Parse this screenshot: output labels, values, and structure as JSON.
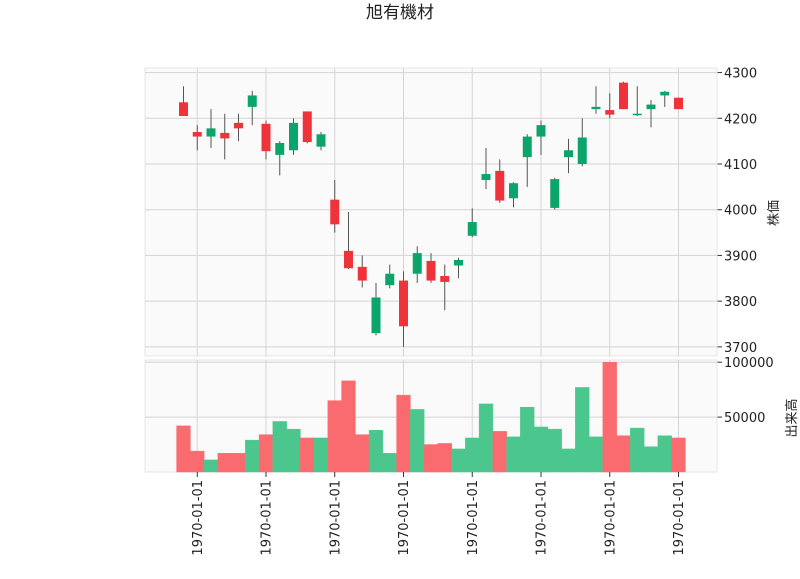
{
  "chart_data": {
    "type": "candlestick",
    "title": "旭有機材",
    "price_axis": {
      "label": "株価",
      "ylim": [
        3680,
        4310
      ],
      "ticks": [
        3700,
        3800,
        3900,
        4000,
        4100,
        4200,
        4300
      ],
      "tick_labels": [
        "3700",
        "3800",
        "3900",
        "4000",
        "4100",
        "4200",
        "4300"
      ]
    },
    "volume_axis": {
      "label": "出来高",
      "ylim": [
        0,
        102000
      ],
      "ticks": [
        50000,
        100000
      ],
      "tick_labels": [
        "50000",
        "100000"
      ]
    },
    "x_tick_labels": [
      "1970-01-01",
      "1970-01-01",
      "1970-01-01",
      "1970-01-01",
      "1970-01-01",
      "1970-01-01",
      "1970-01-01",
      "1970-01-01"
    ],
    "x_tick_indices": [
      1,
      6,
      11,
      16,
      21,
      26,
      31,
      36
    ],
    "grid": true,
    "colors": {
      "up": "#0aa56a",
      "down": "#f0333a",
      "up_volume": "#4bc78e",
      "down_volume": "#fa6b6f"
    },
    "candles": [
      {
        "open": 4235,
        "high": 4270,
        "low": 4205,
        "close": 4205,
        "volume": 42000
      },
      {
        "open": 4170,
        "high": 4185,
        "low": 4130,
        "close": 4160,
        "volume": 19000
      },
      {
        "open": 4160,
        "high": 4220,
        "low": 4135,
        "close": 4178,
        "volume": 11000
      },
      {
        "open": 4168,
        "high": 4210,
        "low": 4110,
        "close": 4156,
        "volume": 17000
      },
      {
        "open": 4190,
        "high": 4210,
        "low": 4150,
        "close": 4178,
        "volume": 17000
      },
      {
        "open": 4225,
        "high": 4260,
        "low": 4185,
        "close": 4250,
        "volume": 29000
      },
      {
        "open": 4188,
        "high": 4195,
        "low": 4110,
        "close": 4128,
        "volume": 34000
      },
      {
        "open": 4120,
        "high": 4150,
        "low": 4075,
        "close": 4146,
        "volume": 46000
      },
      {
        "open": 4130,
        "high": 4200,
        "low": 4120,
        "close": 4190,
        "volume": 39000
      },
      {
        "open": 4215,
        "high": 4215,
        "low": 4145,
        "close": 4148,
        "volume": 31000
      },
      {
        "open": 4138,
        "high": 4170,
        "low": 4130,
        "close": 4165,
        "volume": 31000
      },
      {
        "open": 4022,
        "high": 4065,
        "low": 3950,
        "close": 3968,
        "volume": 65000
      },
      {
        "open": 3910,
        "high": 3995,
        "low": 3870,
        "close": 3872,
        "volume": 83000
      },
      {
        "open": 3875,
        "high": 3900,
        "low": 3830,
        "close": 3845,
        "volume": 34000
      },
      {
        "open": 3730,
        "high": 3840,
        "low": 3725,
        "close": 3808,
        "volume": 38000
      },
      {
        "open": 3835,
        "high": 3880,
        "low": 3828,
        "close": 3860,
        "volume": 17000
      },
      {
        "open": 3845,
        "high": 3865,
        "low": 3700,
        "close": 3745,
        "volume": 70000
      },
      {
        "open": 3860,
        "high": 3920,
        "low": 3840,
        "close": 3905,
        "volume": 57000
      },
      {
        "open": 3888,
        "high": 3905,
        "low": 3840,
        "close": 3845,
        "volume": 25000
      },
      {
        "open": 3855,
        "high": 3880,
        "low": 3780,
        "close": 3842,
        "volume": 26000
      },
      {
        "open": 3878,
        "high": 3895,
        "low": 3850,
        "close": 3890,
        "volume": 21000
      },
      {
        "open": 3943,
        "high": 4003,
        "low": 3940,
        "close": 3973,
        "volume": 31000
      },
      {
        "open": 4065,
        "high": 4135,
        "low": 4045,
        "close": 4078,
        "volume": 62000
      },
      {
        "open": 4085,
        "high": 4110,
        "low": 4015,
        "close": 4020,
        "volume": 37000
      },
      {
        "open": 4025,
        "high": 4060,
        "low": 4005,
        "close": 4058,
        "volume": 32000
      },
      {
        "open": 4115,
        "high": 4165,
        "low": 4050,
        "close": 4160,
        "volume": 59000
      },
      {
        "open": 4160,
        "high": 4195,
        "low": 4120,
        "close": 4185,
        "volume": 41000
      },
      {
        "open": 4004,
        "high": 4070,
        "low": 4000,
        "close": 4067,
        "volume": 39000
      },
      {
        "open": 4115,
        "high": 4155,
        "low": 4080,
        "close": 4130,
        "volume": 21000
      },
      {
        "open": 4100,
        "high": 4200,
        "low": 4095,
        "close": 4158,
        "volume": 77000
      },
      {
        "open": 4220,
        "high": 4270,
        "low": 4210,
        "close": 4225,
        "volume": 32000
      },
      {
        "open": 4218,
        "high": 4255,
        "low": 4200,
        "close": 4208,
        "volume": 100000
      },
      {
        "open": 4278,
        "high": 4280,
        "low": 4220,
        "close": 4220,
        "volume": 33000
      },
      {
        "open": 4210,
        "high": 4270,
        "low": 4205,
        "close": 4210,
        "volume": 40000
      },
      {
        "open": 4220,
        "high": 4240,
        "low": 4180,
        "close": 4230,
        "volume": 23000
      },
      {
        "open": 4250,
        "high": 4260,
        "low": 4225,
        "close": 4258,
        "volume": 33000
      },
      {
        "open": 4245,
        "high": 4245,
        "low": 4220,
        "close": 4220,
        "volume": 31000
      }
    ]
  }
}
